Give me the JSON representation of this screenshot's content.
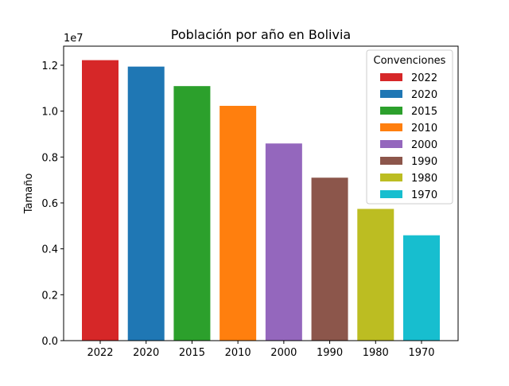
{
  "chart_data": {
    "type": "bar",
    "title": "Población por año en Bolivia",
    "xlabel": "",
    "ylabel": "Tamaño",
    "y_offset_label": "1e7",
    "categories": [
      "2022",
      "2020",
      "2015",
      "2010",
      "2000",
      "1990",
      "1980",
      "1970"
    ],
    "values": [
      12220000,
      11940000,
      11090000,
      10230000,
      8590000,
      7100000,
      5740000,
      4590000
    ],
    "colors": [
      "#d62728",
      "#1f77b4",
      "#2ca02c",
      "#ff7f0e",
      "#9467bd",
      "#8c564b",
      "#bcbd22",
      "#17becf"
    ],
    "ylim": [
      0,
      12830000
    ],
    "yticks": [
      0,
      2000000,
      4000000,
      6000000,
      8000000,
      10000000,
      12000000
    ],
    "ytick_labels": [
      "0.0",
      "0.2",
      "0.4",
      "0.6",
      "0.8",
      "1.0",
      "1.2"
    ],
    "grid": false,
    "legend": {
      "title": "Convenciones",
      "placement": "top-right",
      "entries": [
        "2022",
        "2020",
        "2015",
        "2010",
        "2000",
        "1990",
        "1980",
        "1970"
      ]
    }
  }
}
